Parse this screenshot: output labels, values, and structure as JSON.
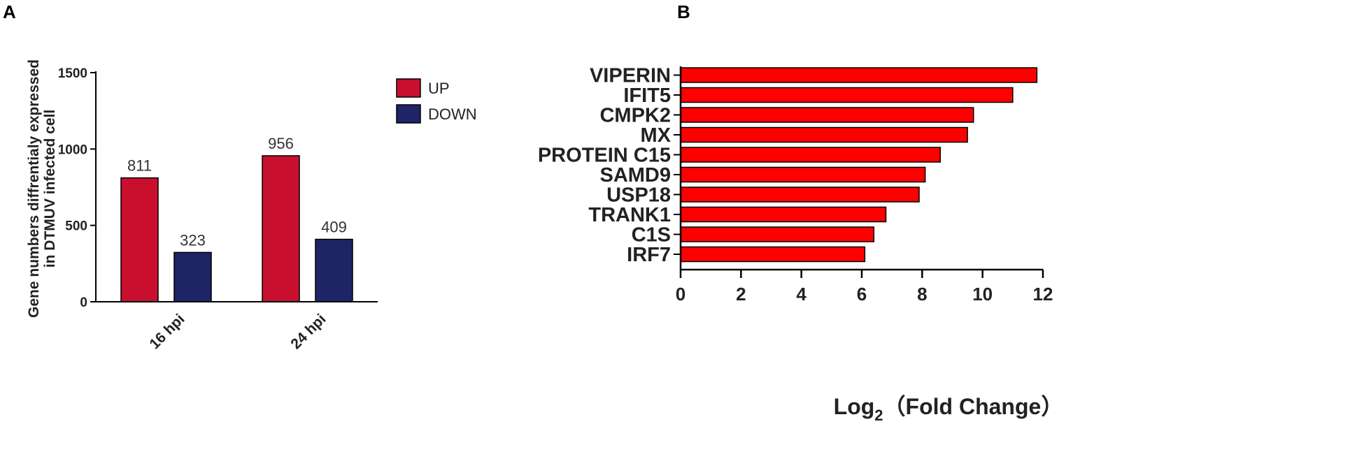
{
  "panels": {
    "a": "A",
    "b": "B"
  },
  "chart_data": [
    {
      "type": "bar",
      "title": "",
      "xlabel": "",
      "ylabel_lines": [
        "Gene numbers diffrentialy expressed",
        "in DTMUV infected cell"
      ],
      "ylim": [
        0,
        1500
      ],
      "yticks": [
        0,
        500,
        1000,
        1500
      ],
      "categories": [
        "16 hpi",
        "24 hpi"
      ],
      "series": [
        {
          "name": "UP",
          "color": "#c8102e",
          "values": [
            811,
            956
          ]
        },
        {
          "name": "DOWN",
          "color": "#1f2466",
          "values": [
            323,
            409
          ]
        }
      ],
      "data_labels": [
        [
          "811",
          "956"
        ],
        [
          "323",
          "409"
        ]
      ],
      "legend_position": "right",
      "grid": false
    },
    {
      "type": "bar",
      "orientation": "horizontal",
      "title": "",
      "xlabel": {
        "base": "Log",
        "sub": "2",
        "rest": "（Fold Change）"
      },
      "ylabel": "",
      "xlim": [
        0,
        12
      ],
      "xticks": [
        0,
        2,
        4,
        6,
        8,
        10,
        12
      ],
      "categories": [
        "VIPERIN",
        "IFIT5",
        "CMPK2",
        "MX",
        "PROTEIN C15",
        "SAMD9",
        "USP18",
        "TRANK1",
        "C1S",
        "IRF7"
      ],
      "values": [
        11.8,
        11.0,
        9.7,
        9.5,
        8.6,
        8.1,
        7.9,
        6.8,
        6.4,
        6.1
      ],
      "bar_color": "#ff0000",
      "grid": false
    }
  ]
}
